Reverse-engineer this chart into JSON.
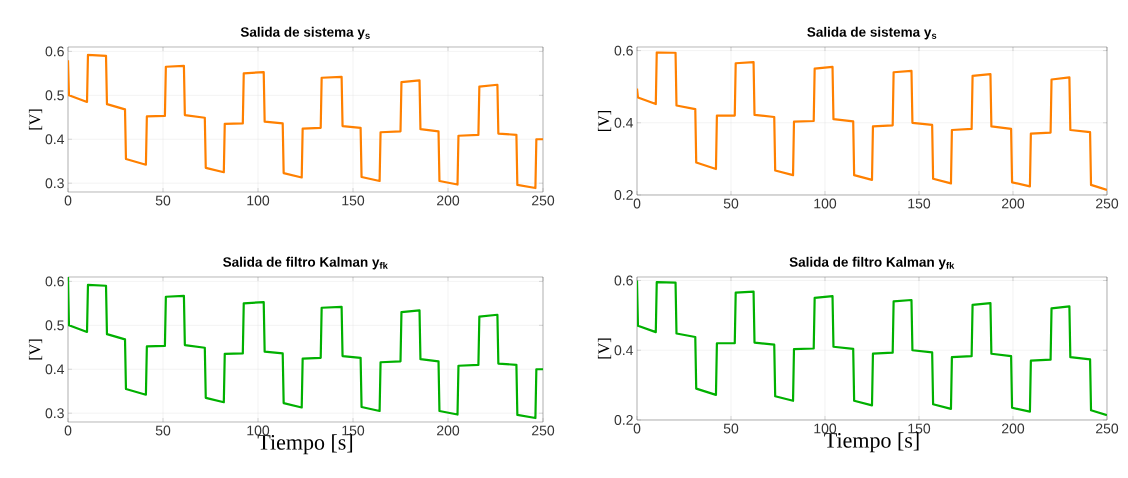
{
  "chart_data": [
    {
      "type": "line",
      "title": "Salida de sistema y$_{s}$",
      "ylabel": "[V]",
      "xlim": [
        0,
        250
      ],
      "ylim": [
        0.28,
        0.61
      ],
      "xticks": [
        0,
        50,
        100,
        150,
        200,
        250
      ],
      "yticks": [
        0.3,
        0.4,
        0.5,
        0.6
      ],
      "grid": true,
      "series": [
        {
          "color": "#ff8000",
          "x": [
            0,
            0.5,
            10,
            10.5,
            20,
            20.5,
            30,
            30.5,
            41,
            41.5,
            51,
            51.5,
            61,
            61.5,
            72,
            72.5,
            82,
            82.5,
            92,
            92.5,
            103,
            103.5,
            113,
            113.5,
            123,
            123.5,
            133,
            133.5,
            144,
            144.5,
            154,
            154.5,
            164,
            164.5,
            175,
            175.5,
            185,
            185.5,
            195,
            195.5,
            205,
            205.5,
            216,
            216.5,
            226,
            226.5,
            236,
            236.5,
            246,
            246.5,
            250
          ],
          "values": [
            0.58,
            0.5,
            0.485,
            0.592,
            0.59,
            0.48,
            0.468,
            0.355,
            0.342,
            0.452,
            0.453,
            0.565,
            0.567,
            0.455,
            0.449,
            0.335,
            0.325,
            0.435,
            0.436,
            0.55,
            0.553,
            0.44,
            0.436,
            0.323,
            0.313,
            0.424,
            0.426,
            0.54,
            0.542,
            0.43,
            0.426,
            0.314,
            0.305,
            0.416,
            0.418,
            0.53,
            0.534,
            0.423,
            0.418,
            0.305,
            0.297,
            0.408,
            0.41,
            0.52,
            0.524,
            0.413,
            0.41,
            0.296,
            0.289,
            0.4,
            0.4
          ]
        }
      ]
    },
    {
      "type": "line",
      "title": "Salida de sistema y$_{s}$",
      "ylabel": "[V]",
      "xlim": [
        0,
        250
      ],
      "ylim": [
        0.2,
        0.61
      ],
      "xticks": [
        0,
        50,
        100,
        150,
        200,
        250
      ],
      "yticks": [
        0.2,
        0.4,
        0.6
      ],
      "grid": true,
      "series": [
        {
          "color": "#ff8000",
          "x": [
            0,
            0.5,
            10,
            10.5,
            20.5,
            21,
            31,
            31.5,
            42,
            42.5,
            52,
            52.5,
            62,
            62.5,
            73,
            73.5,
            83,
            83.5,
            94,
            94.5,
            104,
            104.5,
            115,
            115.5,
            125,
            125.5,
            136,
            136.5,
            146,
            146.5,
            157,
            157.5,
            167,
            167.5,
            178,
            178.5,
            188,
            188.5,
            199,
            199.5,
            209,
            209.5,
            220,
            220.5,
            230,
            230.5,
            241,
            241.5,
            250
          ],
          "values": [
            0.495,
            0.47,
            0.452,
            0.595,
            0.594,
            0.448,
            0.438,
            0.29,
            0.272,
            0.42,
            0.42,
            0.565,
            0.568,
            0.422,
            0.416,
            0.268,
            0.255,
            0.403,
            0.405,
            0.55,
            0.555,
            0.41,
            0.404,
            0.255,
            0.242,
            0.39,
            0.393,
            0.54,
            0.544,
            0.4,
            0.394,
            0.245,
            0.232,
            0.38,
            0.383,
            0.53,
            0.535,
            0.39,
            0.383,
            0.235,
            0.224,
            0.37,
            0.373,
            0.52,
            0.526,
            0.38,
            0.374,
            0.228,
            0.214
          ]
        }
      ]
    },
    {
      "type": "line",
      "title": "Salida de filtro Kalman y$_{fk}$",
      "xlabel": "Tiempo [s]",
      "ylabel": "[V]",
      "xlim": [
        0,
        250
      ],
      "ylim": [
        0.28,
        0.61
      ],
      "xticks": [
        0,
        50,
        100,
        150,
        200,
        250
      ],
      "yticks": [
        0.3,
        0.4,
        0.5,
        0.6
      ],
      "grid": true,
      "series": [
        {
          "color": "#00b000",
          "x": [
            0,
            0.5,
            10,
            10.5,
            20,
            20.5,
            30,
            30.5,
            41,
            41.5,
            51,
            51.5,
            61,
            61.5,
            72,
            72.5,
            82,
            82.5,
            92,
            92.5,
            103,
            103.5,
            113,
            113.5,
            123,
            123.5,
            133,
            133.5,
            144,
            144.5,
            154,
            154.5,
            164,
            164.5,
            175,
            175.5,
            185,
            185.5,
            195,
            195.5,
            205,
            205.5,
            216,
            216.5,
            226,
            226.5,
            236,
            236.5,
            246,
            246.5,
            250
          ],
          "values": [
            0.61,
            0.5,
            0.485,
            0.592,
            0.59,
            0.48,
            0.468,
            0.355,
            0.342,
            0.452,
            0.453,
            0.565,
            0.567,
            0.455,
            0.449,
            0.335,
            0.325,
            0.435,
            0.436,
            0.55,
            0.553,
            0.44,
            0.436,
            0.323,
            0.313,
            0.424,
            0.426,
            0.54,
            0.542,
            0.43,
            0.426,
            0.314,
            0.305,
            0.416,
            0.418,
            0.53,
            0.534,
            0.423,
            0.418,
            0.305,
            0.297,
            0.408,
            0.41,
            0.52,
            0.524,
            0.413,
            0.41,
            0.296,
            0.289,
            0.4,
            0.4
          ]
        }
      ]
    },
    {
      "type": "line",
      "title": "Salida de filtro Kalman y$_{fk}$",
      "xlabel": "Tiempo [s]",
      "ylabel": "[V]",
      "xlim": [
        0,
        250
      ],
      "ylim": [
        0.2,
        0.61
      ],
      "xticks": [
        0,
        50,
        100,
        150,
        200,
        250
      ],
      "yticks": [
        0.2,
        0.4,
        0.6
      ],
      "grid": true,
      "series": [
        {
          "color": "#00b000",
          "x": [
            0,
            0.5,
            10,
            10.5,
            20.5,
            21,
            31,
            31.5,
            42,
            42.5,
            52,
            52.5,
            62,
            62.5,
            73,
            73.5,
            83,
            83.5,
            94,
            94.5,
            104,
            104.5,
            115,
            115.5,
            125,
            125.5,
            136,
            136.5,
            146,
            146.5,
            157,
            157.5,
            167,
            167.5,
            178,
            178.5,
            188,
            188.5,
            199,
            199.5,
            209,
            209.5,
            220,
            220.5,
            230,
            230.5,
            241,
            241.5,
            250
          ],
          "values": [
            0.6,
            0.47,
            0.452,
            0.595,
            0.594,
            0.448,
            0.438,
            0.29,
            0.272,
            0.42,
            0.42,
            0.565,
            0.568,
            0.422,
            0.416,
            0.268,
            0.255,
            0.403,
            0.405,
            0.55,
            0.555,
            0.41,
            0.404,
            0.255,
            0.242,
            0.39,
            0.393,
            0.54,
            0.544,
            0.4,
            0.394,
            0.245,
            0.232,
            0.38,
            0.383,
            0.53,
            0.535,
            0.39,
            0.383,
            0.235,
            0.224,
            0.37,
            0.373,
            0.52,
            0.526,
            0.38,
            0.374,
            0.228,
            0.214
          ]
        }
      ]
    }
  ]
}
